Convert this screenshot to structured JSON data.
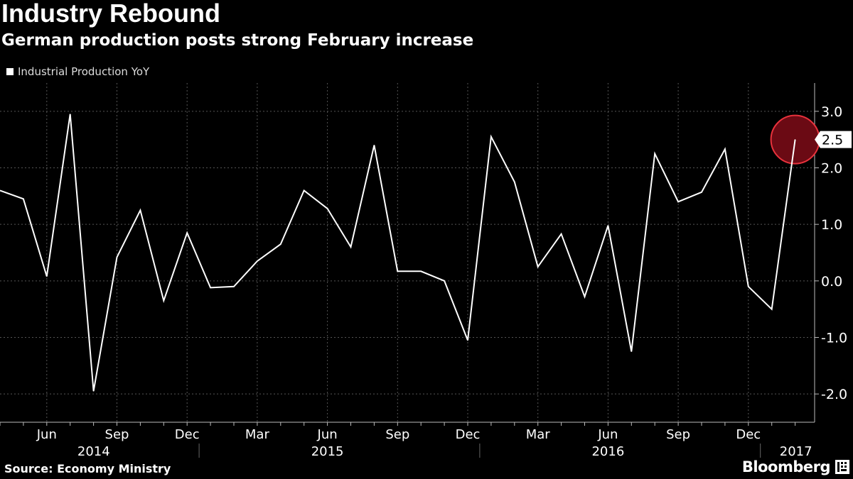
{
  "title": "Industry Rebound",
  "subtitle": "German production posts strong February increase",
  "source": "Source: Economy Ministry",
  "brand": "Bloomberg",
  "brand_icon": "bloomberg-terminal-icon",
  "colors": {
    "background": "#000000",
    "line": "#ffffff",
    "grid": "#555555",
    "highlight_fill": "#6b0a14",
    "highlight_stroke": "#e8323c"
  },
  "chart_data": {
    "type": "line",
    "title": "Industry Rebound",
    "subtitle": "German production posts strong February increase",
    "legend": [
      "Industrial Production YoY"
    ],
    "legend_placement": "top-left",
    "y_axis_position": "right",
    "ylim": [
      -2.5,
      3.5
    ],
    "yticks": [
      -2.0,
      -1.0,
      0.0,
      1.0,
      2.0,
      3.0
    ],
    "ytick_labels": [
      "-2.0",
      "-1.0",
      "0.0",
      "1.0",
      "2.0",
      "3.0"
    ],
    "grid": true,
    "x": [
      "2014-04",
      "2014-05",
      "2014-06",
      "2014-07",
      "2014-08",
      "2014-09",
      "2014-10",
      "2014-11",
      "2014-12",
      "2015-01",
      "2015-02",
      "2015-03",
      "2015-04",
      "2015-05",
      "2015-06",
      "2015-07",
      "2015-08",
      "2015-09",
      "2015-10",
      "2015-11",
      "2015-12",
      "2016-01",
      "2016-02",
      "2016-03",
      "2016-04",
      "2016-05",
      "2016-06",
      "2016-07",
      "2016-08",
      "2016-09",
      "2016-10",
      "2016-11",
      "2016-12",
      "2017-01",
      "2017-02"
    ],
    "x_month_labels": [
      "Jun",
      "Sep",
      "Dec",
      "Mar",
      "Jun",
      "Sep",
      "Dec",
      "Mar",
      "Jun",
      "Sep",
      "Dec"
    ],
    "x_month_label_dates": [
      "2014-06",
      "2014-09",
      "2014-12",
      "2015-03",
      "2015-06",
      "2015-09",
      "2015-12",
      "2016-03",
      "2016-06",
      "2016-09",
      "2016-12"
    ],
    "x_year_labels": [
      "2014",
      "2015",
      "2016",
      "2017"
    ],
    "series": [
      {
        "name": "Industrial Production YoY",
        "values": [
          1.6,
          1.45,
          0.08,
          2.95,
          -1.95,
          0.42,
          1.25,
          -0.35,
          0.85,
          -0.12,
          -0.1,
          0.35,
          0.65,
          1.6,
          1.28,
          0.6,
          2.4,
          0.17,
          0.17,
          0.0,
          -1.05,
          2.55,
          1.75,
          0.25,
          0.83,
          -0.28,
          0.98,
          -1.25,
          2.25,
          1.4,
          1.57,
          2.33,
          -0.1,
          -0.5,
          2.5
        ]
      }
    ],
    "highlight": {
      "x": "2017-02",
      "value": 2.5,
      "label": "2.5"
    }
  }
}
